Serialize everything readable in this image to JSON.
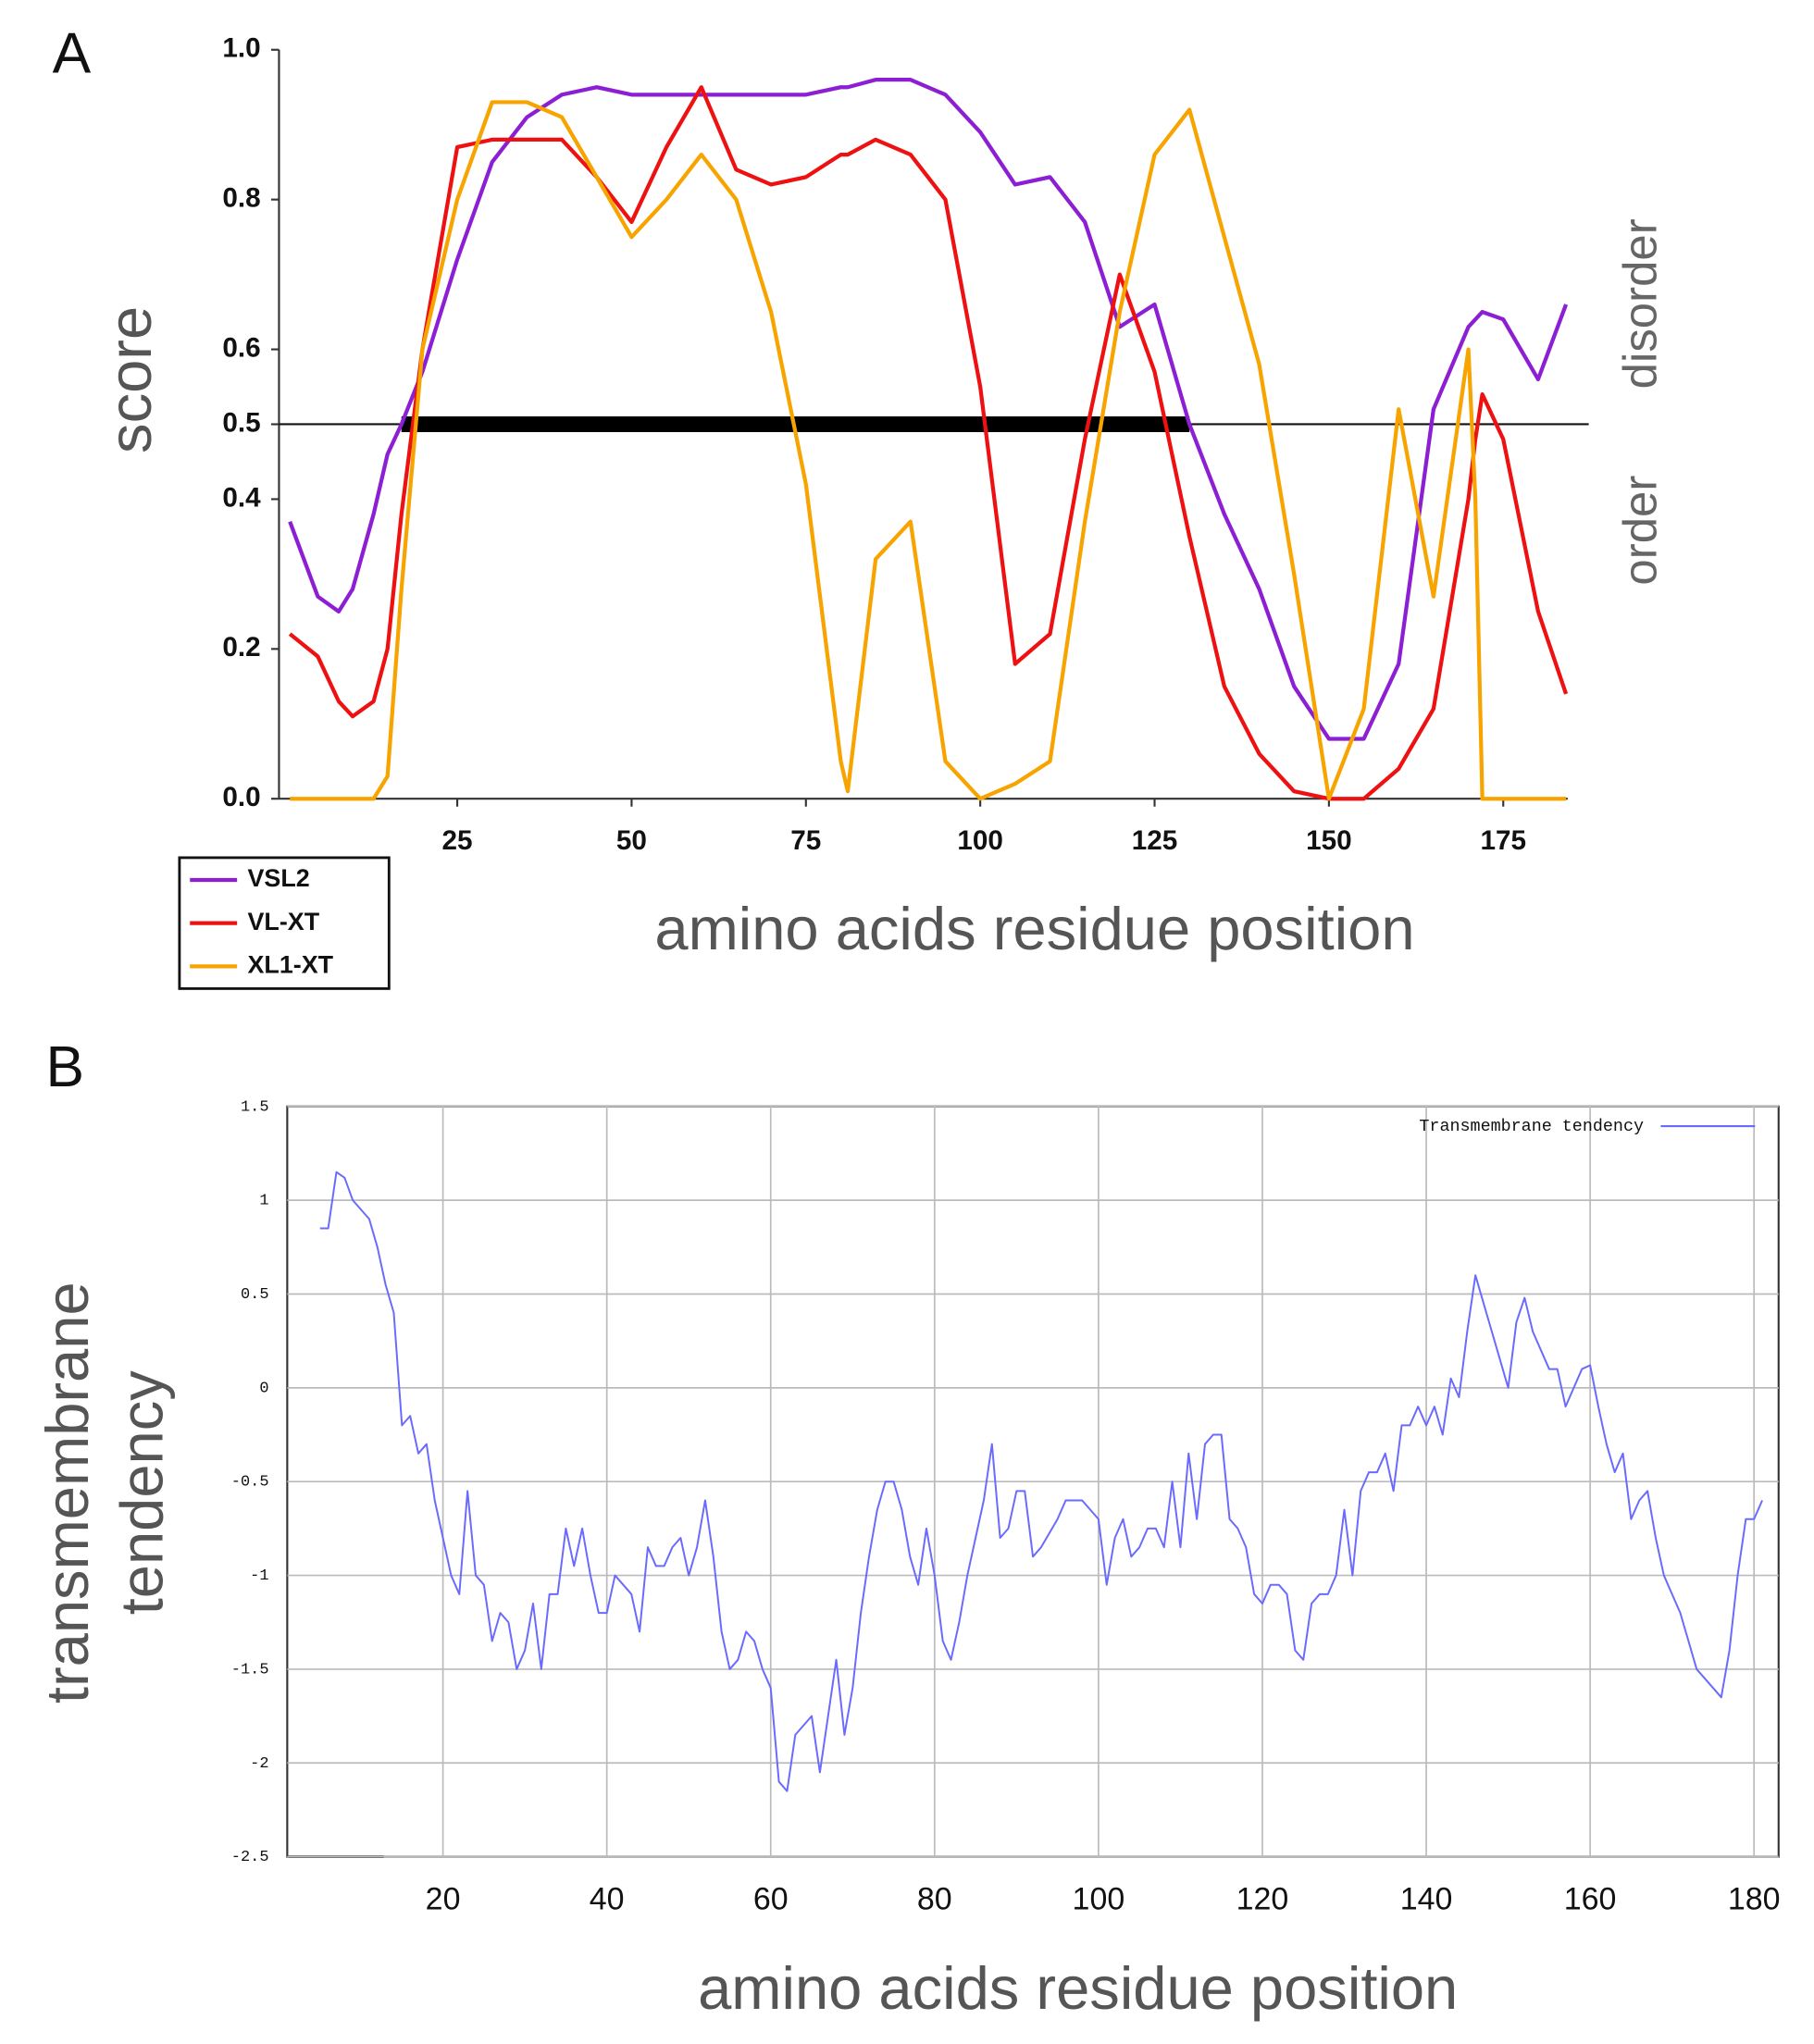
{
  "chart_data": [
    {
      "type": "line",
      "panel_label": "A",
      "y_label": "score",
      "x_label": "amino acids residue position",
      "annotations": [
        "disorder",
        "order"
      ],
      "threshold": 0.5,
      "disordered_region": [
        17,
        130
      ],
      "legend": "below-left",
      "xlim": [
        0,
        185
      ],
      "xticks": [
        25,
        50,
        75,
        100,
        125,
        150,
        175
      ],
      "ylim": [
        0,
        1
      ],
      "yticks": [
        {
          "value": 0,
          "label": "0.0"
        },
        0.2,
        0.4,
        0.5,
        0.6,
        0.8,
        {
          "value": 1,
          "label": "1.0"
        }
      ],
      "x": [
        1,
        5,
        8,
        10,
        13,
        15,
        17,
        20,
        25,
        30,
        35,
        40,
        45,
        50,
        55,
        60,
        65,
        70,
        75,
        80,
        81,
        85,
        90,
        95,
        100,
        105,
        110,
        115,
        120,
        125,
        130,
        135,
        140,
        145,
        150,
        155,
        160,
        165,
        170,
        171,
        172,
        175,
        180,
        184
      ],
      "series": [
        {
          "name": "VSL2",
          "color": "#8c1fd4",
          "values": [
            0.37,
            0.27,
            0.25,
            0.28,
            0.38,
            0.46,
            0.5,
            0.57,
            0.72,
            0.85,
            0.91,
            0.94,
            0.95,
            0.94,
            0.94,
            0.94,
            0.94,
            0.94,
            0.94,
            0.95,
            0.95,
            0.96,
            0.96,
            0.94,
            0.89,
            0.82,
            0.83,
            0.77,
            0.63,
            0.66,
            0.5,
            0.38,
            0.28,
            0.15,
            0.08,
            0.08,
            0.18,
            0.52,
            0.63,
            0.64,
            0.65,
            0.64,
            0.56,
            0.66
          ]
        },
        {
          "name": "VL-XT",
          "color": "#ee1111",
          "values": [
            0.22,
            0.19,
            0.13,
            0.11,
            0.13,
            0.2,
            0.38,
            0.6,
            0.87,
            0.88,
            0.88,
            0.88,
            0.83,
            0.77,
            0.87,
            0.95,
            0.84,
            0.82,
            0.83,
            0.86,
            0.86,
            0.88,
            0.86,
            0.8,
            0.55,
            0.18,
            0.22,
            0.48,
            0.7,
            0.57,
            0.35,
            0.15,
            0.06,
            0.01,
            0,
            0,
            0.04,
            0.12,
            0.4,
            0.48,
            0.54,
            0.48,
            0.25,
            0.14
          ]
        },
        {
          "name": "XL1-XT",
          "color": "#f7a400",
          "values": [
            0,
            0,
            0,
            0,
            0,
            0.03,
            0.28,
            0.6,
            0.8,
            0.93,
            0.93,
            0.91,
            0.83,
            0.75,
            0.8,
            0.86,
            0.8,
            0.65,
            0.42,
            0.05,
            0.01,
            0.32,
            0.37,
            0.05,
            0,
            0.02,
            0.05,
            0.37,
            0.65,
            0.86,
            0.92,
            0.75,
            0.58,
            0.3,
            0,
            0.12,
            0.52,
            0.27,
            0.6,
            0.4,
            0,
            0,
            0,
            0
          ]
        }
      ]
    },
    {
      "type": "line",
      "panel_label": "B",
      "y_label": [
        "transmembrane",
        "tendency"
      ],
      "x_label": "amino acids residue position",
      "grid": true,
      "legend": "upper right",
      "xlim": [
        1,
        183
      ],
      "xticks": [
        20,
        40,
        60,
        80,
        100,
        120,
        140,
        160,
        180
      ],
      "ylim": [
        -2.5,
        1.5
      ],
      "yticks": [
        -2.5,
        -2,
        -1.5,
        -1,
        -0.5,
        0,
        0.5,
        1,
        1.5
      ],
      "x": [
        5,
        6,
        7,
        8,
        9,
        10,
        11,
        12,
        13,
        14,
        15,
        16,
        17,
        18,
        19,
        20,
        21,
        22,
        23,
        24,
        25,
        26,
        27,
        28,
        29,
        30,
        31,
        32,
        33,
        34,
        35,
        36,
        37,
        38,
        39,
        40,
        41,
        42,
        43,
        44,
        45,
        46,
        47,
        48,
        49,
        50,
        51,
        52,
        53,
        54,
        55,
        56,
        57,
        58,
        59,
        60,
        61,
        62,
        63,
        64,
        65,
        66,
        67,
        68,
        69,
        70,
        71,
        72,
        73,
        74,
        75,
        76,
        77,
        78,
        79,
        80,
        81,
        82,
        83,
        84,
        85,
        86,
        87,
        88,
        89,
        90,
        91,
        92,
        93,
        95,
        96,
        98,
        100,
        101,
        102,
        103,
        104,
        105,
        106,
        107,
        108,
        109,
        110,
        111,
        112,
        113,
        114,
        115,
        116,
        117,
        118,
        119,
        120,
        121,
        122,
        123,
        124,
        125,
        126,
        127,
        128,
        129,
        130,
        131,
        132,
        133,
        134,
        135,
        136,
        137,
        138,
        139,
        140,
        141,
        142,
        143,
        144,
        145,
        146,
        147,
        148,
        149,
        150,
        151,
        152,
        153,
        154,
        155,
        156,
        157,
        158,
        159,
        160,
        161,
        162,
        163,
        164,
        165,
        166,
        167,
        168,
        169,
        170,
        171,
        172,
        173,
        174,
        175,
        176,
        177,
        178,
        179,
        180,
        181
      ],
      "series": [
        {
          "name": "Transmembrane tendency",
          "color": "#6a6aff",
          "values": [
            0.85,
            0.85,
            1.15,
            1.12,
            1.0,
            0.95,
            0.9,
            0.75,
            0.55,
            0.4,
            -0.2,
            -0.15,
            -0.35,
            -0.3,
            -0.6,
            -0.8,
            -1.0,
            -1.1,
            -0.55,
            -1.0,
            -1.05,
            -1.35,
            -1.2,
            -1.25,
            -1.5,
            -1.4,
            -1.15,
            -1.5,
            -1.1,
            -1.1,
            -0.75,
            -0.95,
            -0.75,
            -1.0,
            -1.2,
            -1.2,
            -1.0,
            -1.05,
            -1.1,
            -1.3,
            -0.85,
            -0.95,
            -0.95,
            -0.85,
            -0.8,
            -1.0,
            -0.85,
            -0.6,
            -0.9,
            -1.3,
            -1.5,
            -1.45,
            -1.3,
            -1.35,
            -1.5,
            -1.6,
            -2.1,
            -2.15,
            -1.85,
            -1.8,
            -1.75,
            -2.05,
            -1.75,
            -1.45,
            -1.85,
            -1.6,
            -1.2,
            -0.9,
            -0.65,
            -0.5,
            -0.5,
            -0.65,
            -0.9,
            -1.05,
            -0.75,
            -1.0,
            -1.35,
            -1.45,
            -1.25,
            -1.0,
            -0.8,
            -0.6,
            -0.3,
            -0.8,
            -0.75,
            -0.55,
            -0.55,
            -0.9,
            -0.85,
            -0.7,
            -0.6,
            -0.6,
            -0.7,
            -1.05,
            -0.8,
            -0.7,
            -0.9,
            -0.85,
            -0.75,
            -0.75,
            -0.85,
            -0.5,
            -0.85,
            -0.35,
            -0.7,
            -0.3,
            -0.25,
            -0.25,
            -0.7,
            -0.75,
            -0.85,
            -1.1,
            -1.15,
            -1.05,
            -1.05,
            -1.1,
            -1.4,
            -1.45,
            -1.15,
            -1.1,
            -1.1,
            -1.0,
            -0.65,
            -1.0,
            -0.55,
            -0.45,
            -0.45,
            -0.35,
            -0.55,
            -0.2,
            -0.2,
            -0.1,
            -0.2,
            -0.1,
            -0.25,
            0.05,
            -0.05,
            0.3,
            0.6,
            0.45,
            0.3,
            0.15,
            0,
            0.35,
            0.48,
            0.3,
            0.2,
            0.1,
            0.1,
            -0.1,
            0,
            0.1,
            0.12,
            -0.1,
            -0.3,
            -0.45,
            -0.35,
            -0.7,
            -0.6,
            -0.55,
            -0.8,
            -1.0,
            -1.1,
            -1.2,
            -1.35,
            -1.5,
            -1.55,
            -1.6,
            -1.65,
            -1.4,
            -1.0,
            -0.7,
            -0.7,
            -0.6
          ]
        }
      ]
    }
  ]
}
